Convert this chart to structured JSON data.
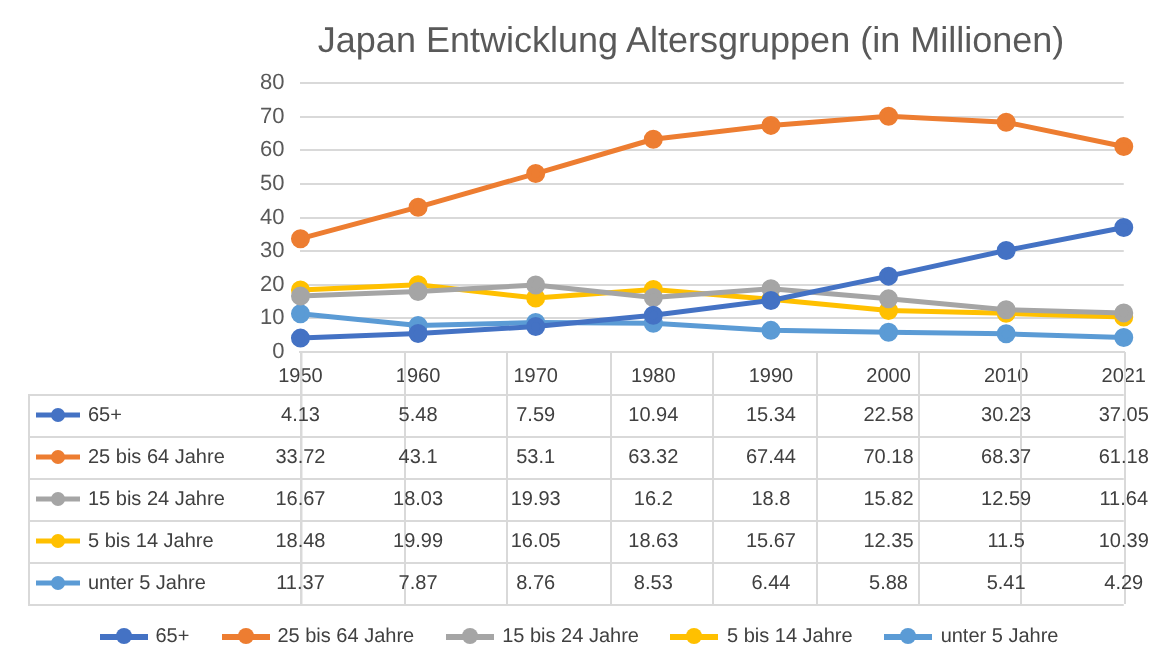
{
  "chart_data": {
    "type": "line",
    "title": "Japan Entwicklung Altersgruppen (in Millionen)",
    "categories": [
      "1950",
      "1960",
      "1970",
      "1980",
      "1990",
      "2000",
      "2010",
      "2021"
    ],
    "series": [
      {
        "name": "65+",
        "color": "#4472c4",
        "values": [
          4.13,
          5.48,
          7.59,
          10.94,
          15.34,
          22.58,
          30.23,
          37.05
        ]
      },
      {
        "name": "25 bis 64 Jahre",
        "color": "#ed7d31",
        "values": [
          33.72,
          43.1,
          53.1,
          63.32,
          67.44,
          70.18,
          68.37,
          61.18
        ]
      },
      {
        "name": "15 bis 24 Jahre",
        "color": "#a5a5a5",
        "values": [
          16.67,
          18.03,
          19.93,
          16.2,
          18.8,
          15.82,
          12.59,
          11.64
        ]
      },
      {
        "name": "5 bis 14 Jahre",
        "color": "#ffc000",
        "values": [
          18.48,
          19.99,
          16.05,
          18.63,
          15.67,
          12.35,
          11.5,
          10.39
        ]
      },
      {
        "name": "unter 5 Jahre",
        "color": "#5b9bd5",
        "values": [
          11.37,
          7.87,
          8.76,
          8.53,
          6.44,
          5.88,
          5.41,
          4.29
        ]
      }
    ],
    "ylim": [
      0,
      80
    ],
    "yticks": [
      0,
      10,
      20,
      30,
      40,
      50,
      60,
      70,
      80
    ],
    "grid": "y",
    "legend": "bottom",
    "marker": "circle",
    "line_style": "solid",
    "data_labels": true
  }
}
